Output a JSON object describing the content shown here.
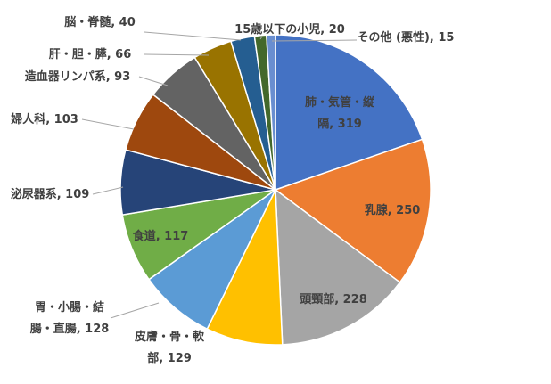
{
  "chart_data": {
    "type": "pie",
    "title": "",
    "start_angle_deg": 0,
    "direction": "clockwise",
    "slices": [
      {
        "label": "肺・気管・縦隔",
        "label_lines": [
          "肺・気管・縦",
          "隔, 319"
        ],
        "value": 319,
        "color": "#4472c4"
      },
      {
        "label": "乳腺",
        "label_lines": [
          "乳腺, 250"
        ],
        "value": 250,
        "color": "#ed7d31"
      },
      {
        "label": "頭頸部",
        "label_lines": [
          "頭頸部, 228"
        ],
        "value": 228,
        "color": "#a5a5a5"
      },
      {
        "label": "皮膚・骨・軟部",
        "label_lines": [
          "皮膚・骨・軟",
          "部, 129"
        ],
        "value": 129,
        "color": "#ffc000"
      },
      {
        "label": "胃・小腸・結腸・直腸",
        "label_lines": [
          "胃・小腸・結",
          "腸・直腸, 128"
        ],
        "value": 128,
        "color": "#5b9bd5"
      },
      {
        "label": "食道",
        "label_lines": [
          "食道, 117"
        ],
        "value": 117,
        "color": "#70ad47"
      },
      {
        "label": "泌尿器系",
        "label_lines": [
          "泌尿器系, 109"
        ],
        "value": 109,
        "color": "#264478"
      },
      {
        "label": "婦人科",
        "label_lines": [
          "婦人科, 103"
        ],
        "value": 103,
        "color": "#9e480e"
      },
      {
        "label": "造血器リンパ系",
        "label_lines": [
          "造血器リンパ系, 93"
        ],
        "value": 93,
        "color": "#636363"
      },
      {
        "label": "肝・胆・膵",
        "label_lines": [
          "肝・胆・膵, 66"
        ],
        "value": 66,
        "color": "#997300"
      },
      {
        "label": "脳・脊髄",
        "label_lines": [
          "脳・脊髄, 40"
        ],
        "value": 40,
        "color": "#255e91"
      },
      {
        "label": "15歳以下の小児",
        "label_lines": [
          "15歳以下の小児, 20"
        ],
        "value": 20,
        "color": "#43682b"
      },
      {
        "label": "その他 (悪性)",
        "label_lines": [
          "その他 (悪性), 15"
        ],
        "value": 15,
        "color": "#698ed0"
      }
    ]
  }
}
